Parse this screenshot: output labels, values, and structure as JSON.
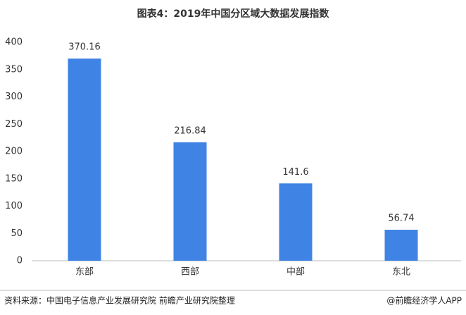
{
  "chart_data": {
    "type": "bar",
    "title": "图表4：2019年中国分区域大数据发展指数",
    "categories": [
      "东部",
      "西部",
      "中部",
      "东北"
    ],
    "values": [
      370.16,
      216.84,
      141.6,
      56.74
    ],
    "color": "#3f83e4",
    "ylim": [
      0,
      400
    ],
    "yticks": [
      0,
      50,
      100,
      150,
      200,
      250,
      300,
      350,
      400
    ],
    "grid": false,
    "source": "资料来源：中国电子信息产业发展研究院 前瞻产业研究院整理",
    "credit": "@前瞻经济学人APP"
  }
}
